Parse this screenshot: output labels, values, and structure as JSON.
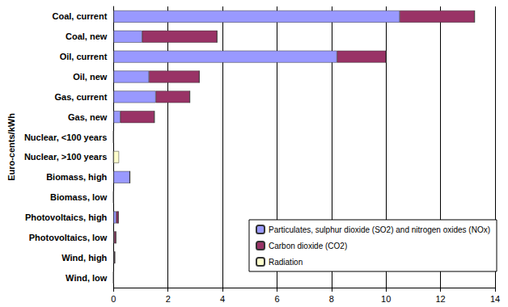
{
  "chart_data": {
    "type": "bar",
    "orientation": "horizontal",
    "stacked": true,
    "grid": true,
    "legend": "lower right",
    "ylabel": "Euro-cents/kWh",
    "categories": [
      "Coal, current",
      "Coal, new",
      "Oil, current",
      "Oil, new",
      "Gas, current",
      "Gas, new",
      "Nuclear, <100 years",
      "Nuclear, >100 years",
      "Biomass, high",
      "Biomass, low",
      "Photovoltaics, high",
      "Photovoltaics, low",
      "Wind, high",
      "Wind, low"
    ],
    "xlim": [
      0,
      14
    ],
    "xticks": [
      0,
      2,
      4,
      6,
      8,
      10,
      12,
      14
    ],
    "series": [
      {
        "name": "Particulates, sulphur dioxide (SO2) and nitrogen oxides (NOx)",
        "color": "#9999ff",
        "values": [
          10.5,
          1.05,
          8.2,
          1.3,
          1.55,
          0.25,
          0,
          0,
          0.6,
          0,
          0.1,
          0.02,
          0.02,
          0
        ]
      },
      {
        "name": "Carbon dioxide (CO2)",
        "color": "#993366",
        "values": [
          2.75,
          2.75,
          1.8,
          1.85,
          1.25,
          1.25,
          0,
          0,
          0,
          0,
          0.08,
          0.07,
          0.03,
          0
        ]
      },
      {
        "name": "Radiation",
        "color": "#ffffcc",
        "values": [
          0,
          0,
          0,
          0,
          0,
          0,
          0,
          0.2,
          0,
          0,
          0,
          0,
          0,
          0
        ]
      }
    ]
  }
}
